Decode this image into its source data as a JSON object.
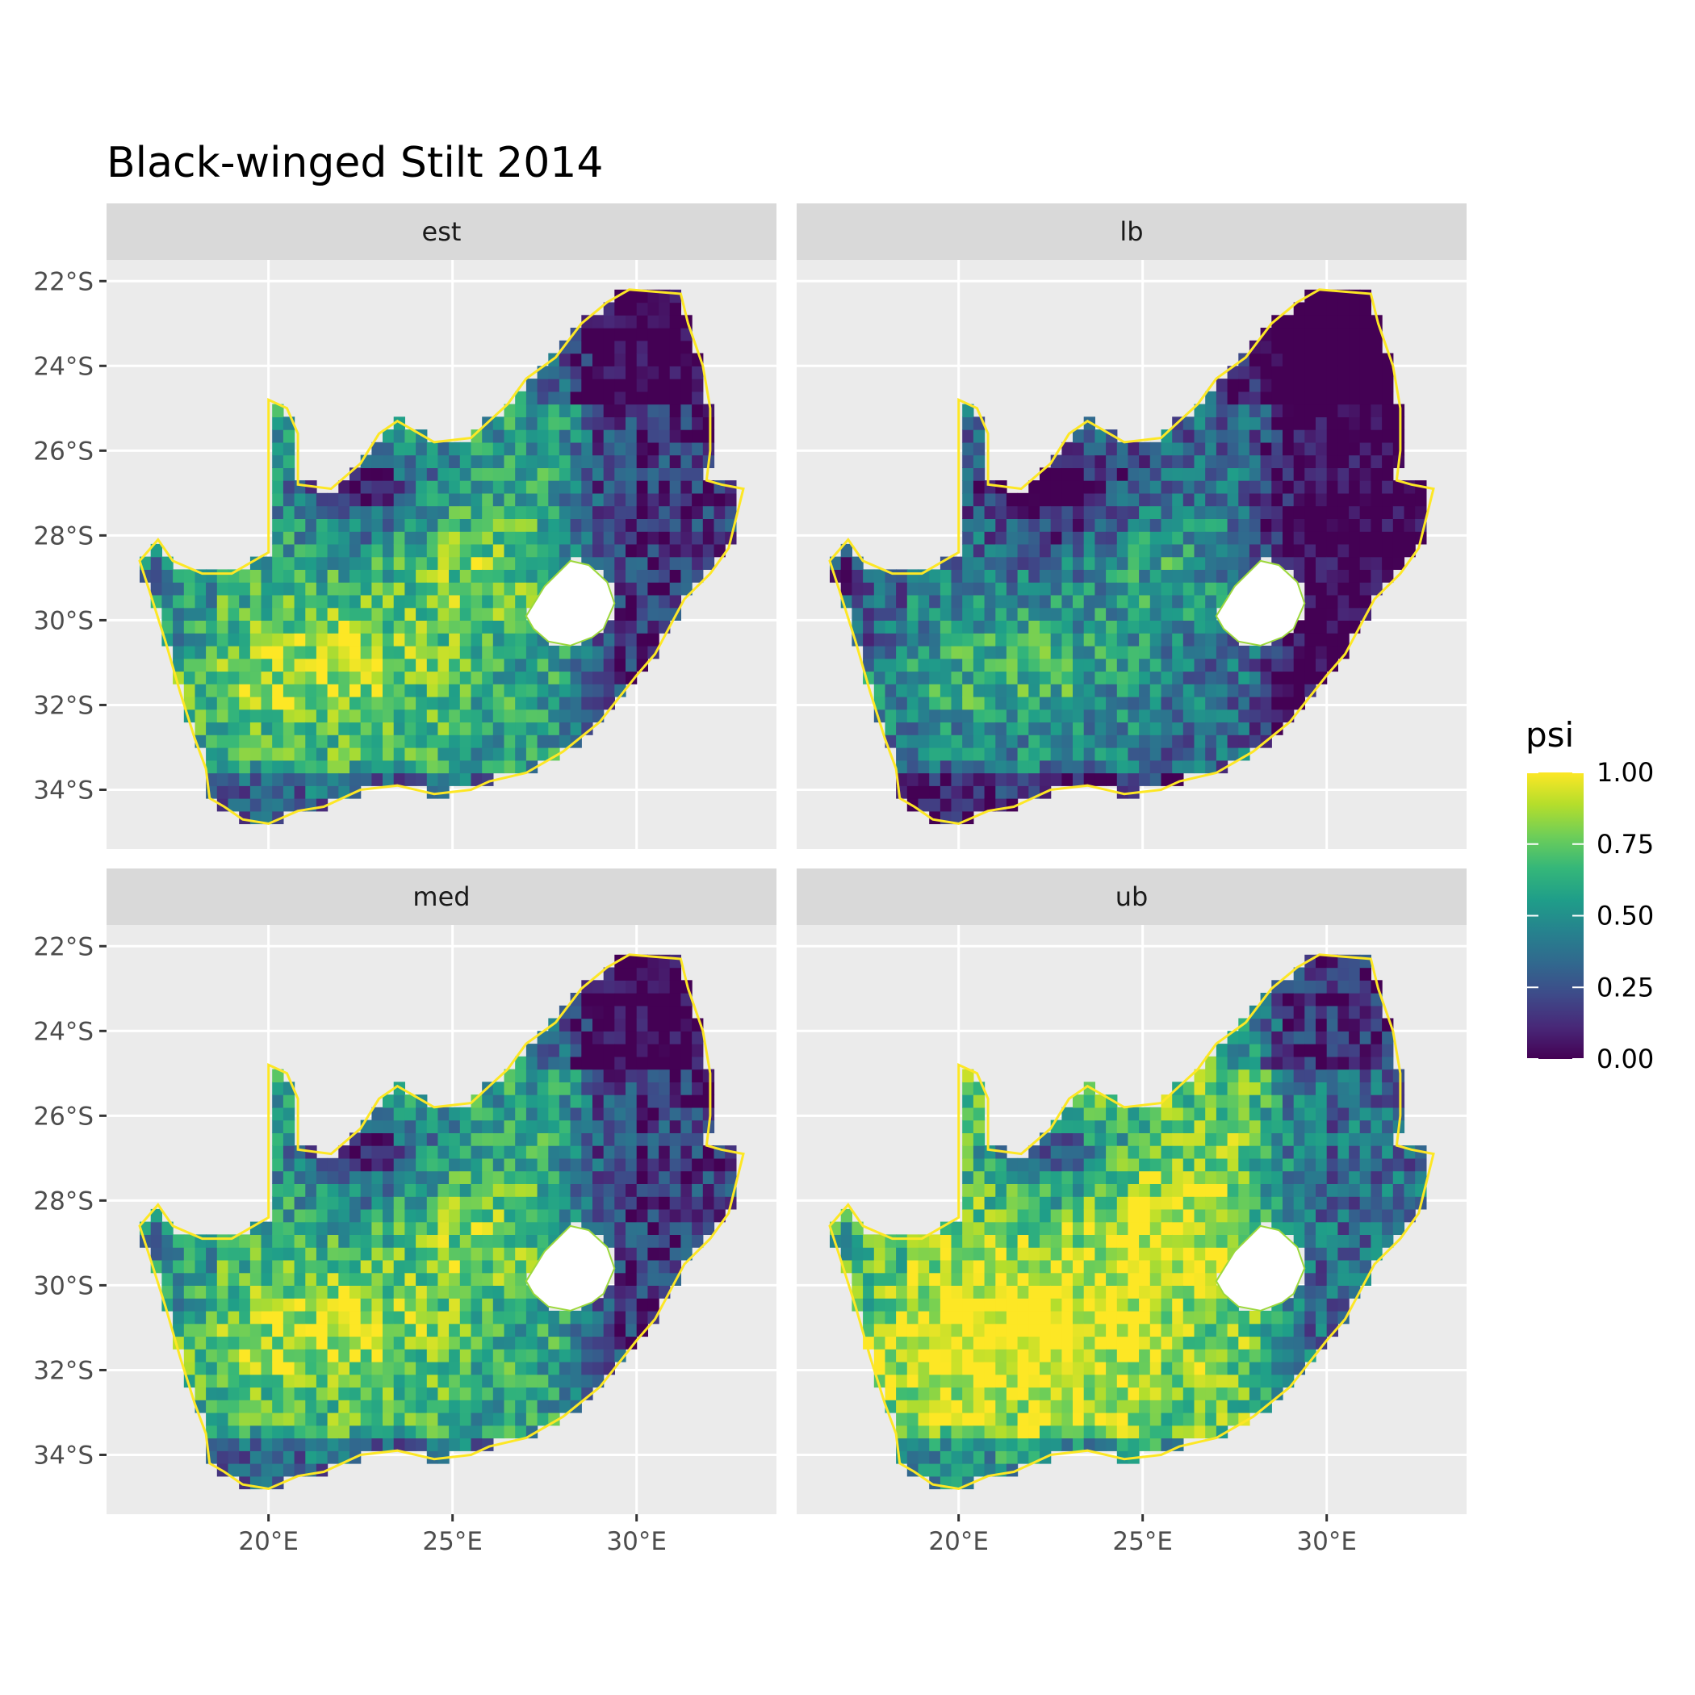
{
  "title": "Black-winged Stilt 2014",
  "colors": {
    "panel_background": "#ebebeb",
    "strip_background": "#d9d9d9",
    "grid": "#ffffff",
    "viridis": [
      "#440154",
      "#482878",
      "#3e4a89",
      "#31688e",
      "#26828e",
      "#1f9e89",
      "#35b779",
      "#6ece58",
      "#b5de2b",
      "#fde725"
    ]
  },
  "map_data": {
    "type": "raster-map",
    "region": "South Africa",
    "facets": [
      "est",
      "lb",
      "med",
      "ub"
    ],
    "facet_mean_shift": {
      "est": 0.0,
      "lb": -0.22,
      "med": 0.02,
      "ub": 0.2
    },
    "x_ticks": [
      {
        "value": 20,
        "label": "20°E"
      },
      {
        "value": 25,
        "label": "25°E"
      },
      {
        "value": 30,
        "label": "30°E"
      }
    ],
    "y_ticks": [
      {
        "value": -22,
        "label": "22°S"
      },
      {
        "value": -24,
        "label": "24°S"
      },
      {
        "value": -26,
        "label": "26°S"
      },
      {
        "value": -28,
        "label": "28°S"
      },
      {
        "value": -30,
        "label": "30°S"
      },
      {
        "value": -32,
        "label": "32°S"
      },
      {
        "value": -34,
        "label": "34°S"
      }
    ],
    "xlim": [
      15.6,
      33.8
    ],
    "ylim": [
      -35.4,
      -21.5
    ],
    "outline": [
      [
        16.5,
        -28.6
      ],
      [
        17.0,
        -28.1
      ],
      [
        17.4,
        -28.6
      ],
      [
        18.2,
        -28.9
      ],
      [
        19.0,
        -28.9
      ],
      [
        19.8,
        -28.5
      ],
      [
        20.0,
        -28.4
      ],
      [
        20.0,
        -24.8
      ],
      [
        20.5,
        -25.0
      ],
      [
        20.8,
        -25.6
      ],
      [
        20.8,
        -26.8
      ],
      [
        21.7,
        -26.9
      ],
      [
        22.5,
        -26.3
      ],
      [
        23.0,
        -25.6
      ],
      [
        23.5,
        -25.3
      ],
      [
        24.5,
        -25.8
      ],
      [
        25.5,
        -25.7
      ],
      [
        26.5,
        -24.9
      ],
      [
        27.0,
        -24.3
      ],
      [
        27.8,
        -23.8
      ],
      [
        28.5,
        -23.0
      ],
      [
        29.2,
        -22.5
      ],
      [
        29.8,
        -22.2
      ],
      [
        31.2,
        -22.3
      ],
      [
        31.4,
        -23.0
      ],
      [
        31.8,
        -24.0
      ],
      [
        32.0,
        -25.0
      ],
      [
        32.0,
        -26.0
      ],
      [
        31.9,
        -26.7
      ],
      [
        32.3,
        -26.8
      ],
      [
        32.9,
        -26.9
      ],
      [
        32.5,
        -28.3
      ],
      [
        32.0,
        -28.9
      ],
      [
        31.3,
        -29.5
      ],
      [
        30.5,
        -30.8
      ],
      [
        30.0,
        -31.3
      ],
      [
        29.0,
        -32.4
      ],
      [
        28.0,
        -33.1
      ],
      [
        27.0,
        -33.6
      ],
      [
        26.0,
        -33.8
      ],
      [
        25.5,
        -34.0
      ],
      [
        24.5,
        -34.1
      ],
      [
        23.5,
        -33.9
      ],
      [
        22.5,
        -34.0
      ],
      [
        21.5,
        -34.4
      ],
      [
        20.8,
        -34.5
      ],
      [
        20.0,
        -34.8
      ],
      [
        19.3,
        -34.7
      ],
      [
        18.8,
        -34.4
      ],
      [
        18.4,
        -34.2
      ],
      [
        18.3,
        -33.5
      ],
      [
        18.0,
        -32.8
      ],
      [
        17.6,
        -31.7
      ],
      [
        17.2,
        -30.5
      ],
      [
        16.8,
        -29.4
      ]
    ],
    "lesotho": [
      [
        27.0,
        -29.9
      ],
      [
        27.5,
        -29.2
      ],
      [
        28.2,
        -28.6
      ],
      [
        28.7,
        -28.7
      ],
      [
        29.2,
        -29.1
      ],
      [
        29.4,
        -29.6
      ],
      [
        29.1,
        -30.2
      ],
      [
        28.8,
        -30.4
      ],
      [
        28.2,
        -30.6
      ],
      [
        27.6,
        -30.5
      ],
      [
        27.2,
        -30.2
      ]
    ]
  },
  "legend": {
    "title": "psi",
    "breaks": [
      {
        "value": 1.0,
        "label": "1.00"
      },
      {
        "value": 0.75,
        "label": "0.75"
      },
      {
        "value": 0.5,
        "label": "0.50"
      },
      {
        "value": 0.25,
        "label": "0.25"
      },
      {
        "value": 0.0,
        "label": "0.00"
      }
    ],
    "limits": [
      0,
      1
    ]
  }
}
